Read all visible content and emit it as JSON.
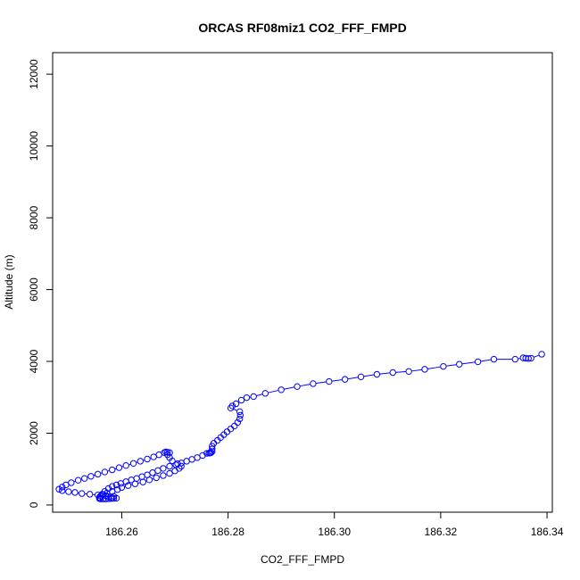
{
  "chart_data": {
    "type": "scatter",
    "title": "ORCAS RF08miz1 CO2_FFF_FMPD",
    "xlabel": "CO2_FFF_FMPD",
    "ylabel": "Altitude (m)",
    "xlim": [
      186.247,
      186.341
    ],
    "ylim": [
      -200,
      12600
    ],
    "xticks": [
      186.26,
      186.28,
      186.3,
      186.32,
      186.34
    ],
    "xtick_labels": [
      "186.26",
      "186.28",
      "186.30",
      "186.32",
      "186.34"
    ],
    "yticks": [
      0,
      2000,
      4000,
      6000,
      8000,
      10000,
      12000
    ],
    "ytick_labels": [
      "0",
      "2000",
      "4000",
      "6000",
      "8000",
      "10000",
      "12000"
    ],
    "grid": false,
    "series_color": "#0000ff",
    "marker": "open-circle",
    "connected": true,
    "points": [
      [
        186.339,
        4200
      ],
      [
        186.337,
        4090
      ],
      [
        186.3365,
        4080
      ],
      [
        186.336,
        4090
      ],
      [
        186.3355,
        4100
      ],
      [
        186.334,
        4060
      ],
      [
        186.33,
        4060
      ],
      [
        186.327,
        3990
      ],
      [
        186.3235,
        3920
      ],
      [
        186.3205,
        3860
      ],
      [
        186.317,
        3780
      ],
      [
        186.314,
        3720
      ],
      [
        186.311,
        3690
      ],
      [
        186.308,
        3640
      ],
      [
        186.305,
        3570
      ],
      [
        186.302,
        3500
      ],
      [
        186.299,
        3440
      ],
      [
        186.296,
        3380
      ],
      [
        186.293,
        3300
      ],
      [
        186.29,
        3210
      ],
      [
        186.287,
        3110
      ],
      [
        186.2848,
        3020
      ],
      [
        186.2835,
        2990
      ],
      [
        186.2825,
        2920
      ],
      [
        186.2815,
        2820
      ],
      [
        186.2808,
        2760
      ],
      [
        186.2805,
        2700
      ],
      [
        186.2822,
        2600
      ],
      [
        186.2823,
        2500
      ],
      [
        186.2822,
        2400
      ],
      [
        186.2818,
        2300
      ],
      [
        186.2812,
        2200
      ],
      [
        186.2805,
        2120
      ],
      [
        186.2798,
        2040
      ],
      [
        186.2792,
        1960
      ],
      [
        186.2786,
        1880
      ],
      [
        186.278,
        1800
      ],
      [
        186.2773,
        1720
      ],
      [
        186.277,
        1640
      ],
      [
        186.277,
        1560
      ],
      [
        186.277,
        1490
      ],
      [
        186.2768,
        1460
      ],
      [
        186.2766,
        1450
      ],
      [
        186.2764,
        1445
      ],
      [
        186.276,
        1440
      ],
      [
        186.2752,
        1380
      ],
      [
        186.2742,
        1320
      ],
      [
        186.2732,
        1270
      ],
      [
        186.2722,
        1220
      ],
      [
        186.2712,
        1170
      ],
      [
        186.2702,
        1120
      ],
      [
        186.269,
        1080
      ],
      [
        186.2678,
        1020
      ],
      [
        186.2668,
        960
      ],
      [
        186.2658,
        900
      ],
      [
        186.2648,
        840
      ],
      [
        186.2638,
        790
      ],
      [
        186.2628,
        740
      ],
      [
        186.2618,
        700
      ],
      [
        186.2608,
        650
      ],
      [
        186.2598,
        600
      ],
      [
        186.259,
        560
      ],
      [
        186.2582,
        520
      ],
      [
        186.2575,
        460
      ],
      [
        186.2568,
        380
      ],
      [
        186.2563,
        300
      ],
      [
        186.256,
        250
      ],
      [
        186.2558,
        210
      ],
      [
        186.2558,
        180
      ],
      [
        186.256,
        170
      ],
      [
        186.2565,
        170
      ],
      [
        186.257,
        170
      ],
      [
        186.2575,
        175
      ],
      [
        186.258,
        180
      ],
      [
        186.2585,
        185
      ],
      [
        186.259,
        190
      ],
      [
        186.2582,
        200
      ],
      [
        186.2575,
        230
      ],
      [
        186.257,
        260
      ],
      [
        186.2565,
        290
      ],
      [
        186.2572,
        330
      ],
      [
        186.2582,
        380
      ],
      [
        186.2592,
        430
      ],
      [
        186.26,
        490
      ],
      [
        186.2612,
        540
      ],
      [
        186.2625,
        590
      ],
      [
        186.264,
        640
      ],
      [
        186.2652,
        700
      ],
      [
        186.2665,
        760
      ],
      [
        186.2678,
        820
      ],
      [
        186.269,
        880
      ],
      [
        186.27,
        950
      ],
      [
        186.2708,
        1020
      ],
      [
        186.2712,
        1080
      ],
      [
        186.2705,
        1150
      ],
      [
        186.2695,
        1230
      ],
      [
        186.269,
        1320
      ],
      [
        186.2686,
        1400
      ],
      [
        186.269,
        1460
      ],
      [
        186.2686,
        1470
      ],
      [
        186.2683,
        1480
      ],
      [
        186.268,
        1460
      ],
      [
        186.267,
        1400
      ],
      [
        186.266,
        1340
      ],
      [
        186.2648,
        1280
      ],
      [
        186.2635,
        1220
      ],
      [
        186.2622,
        1160
      ],
      [
        186.2608,
        1100
      ],
      [
        186.2595,
        1040
      ],
      [
        186.2582,
        980
      ],
      [
        186.2568,
        920
      ],
      [
        186.2555,
        860
      ],
      [
        186.2542,
        800
      ],
      [
        186.253,
        740
      ],
      [
        186.2518,
        690
      ],
      [
        186.2505,
        620
      ],
      [
        186.2495,
        560
      ],
      [
        186.2488,
        500
      ],
      [
        186.2482,
        440
      ],
      [
        186.2488,
        400
      ],
      [
        186.25,
        370
      ],
      [
        186.2512,
        350
      ],
      [
        186.2525,
        320
      ],
      [
        186.254,
        300
      ],
      [
        186.2555,
        280
      ],
      [
        186.257,
        260
      ],
      [
        186.2585,
        240
      ]
    ]
  }
}
